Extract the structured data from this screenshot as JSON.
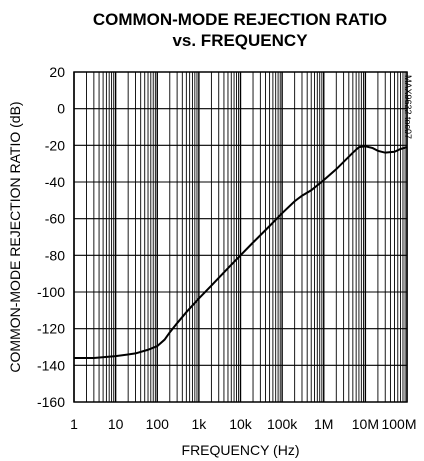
{
  "chart_data": {
    "type": "line",
    "title": [
      "COMMON-MODE REJECTION RATIO",
      "vs. FREQUENCY"
    ],
    "xlabel": "FREQUENCY (Hz)",
    "ylabel": "COMMON-MODE REJECTION RATIO (dB)",
    "figure_code": "MAX9632 toc07",
    "x_scale": "log",
    "xlim": [
      1,
      100000000
    ],
    "ylim": [
      -160,
      20
    ],
    "grid": true,
    "x_ticks": [
      {
        "value": 1,
        "label": "1"
      },
      {
        "value": 10,
        "label": "10"
      },
      {
        "value": 100,
        "label": "100"
      },
      {
        "value": 1000,
        "label": "1k"
      },
      {
        "value": 10000,
        "label": "10k"
      },
      {
        "value": 100000,
        "label": "100k"
      },
      {
        "value": 1000000,
        "label": "1M"
      },
      {
        "value": 10000000,
        "label": "10M"
      },
      {
        "value": 100000000,
        "label": "100M"
      }
    ],
    "y_ticks": [
      {
        "value": 20,
        "label": "20"
      },
      {
        "value": 0,
        "label": "0"
      },
      {
        "value": -20,
        "label": "-20"
      },
      {
        "value": -40,
        "label": "-40"
      },
      {
        "value": -60,
        "label": "-60"
      },
      {
        "value": -80,
        "label": "-80"
      },
      {
        "value": -100,
        "label": "-100"
      },
      {
        "value": -120,
        "label": "-120"
      },
      {
        "value": -140,
        "label": "-140"
      },
      {
        "value": -160,
        "label": "-160"
      }
    ],
    "series": [
      {
        "color": "#000000",
        "points": [
          [
            1,
            -136
          ],
          [
            3,
            -136
          ],
          [
            10,
            -135
          ],
          [
            30,
            -133.5
          ],
          [
            60,
            -131.5
          ],
          [
            100,
            -129.5
          ],
          [
            150,
            -126
          ],
          [
            200,
            -122
          ],
          [
            300,
            -117
          ],
          [
            500,
            -111
          ],
          [
            1000,
            -103.5
          ],
          [
            2000,
            -96.5
          ],
          [
            5000,
            -87
          ],
          [
            10000,
            -80
          ],
          [
            20000,
            -73
          ],
          [
            50000,
            -64
          ],
          [
            100000,
            -57
          ],
          [
            200000,
            -50.5
          ],
          [
            300000,
            -47.5
          ],
          [
            500000,
            -44.5
          ],
          [
            1000000,
            -39
          ],
          [
            2000000,
            -33
          ],
          [
            5000000,
            -24
          ],
          [
            7000000,
            -21
          ],
          [
            10000000,
            -20.5
          ],
          [
            15000000,
            -21.5
          ],
          [
            20000000,
            -23
          ],
          [
            30000000,
            -24
          ],
          [
            50000000,
            -23.5
          ],
          [
            70000000,
            -22
          ],
          [
            100000000,
            -21
          ]
        ]
      }
    ]
  }
}
